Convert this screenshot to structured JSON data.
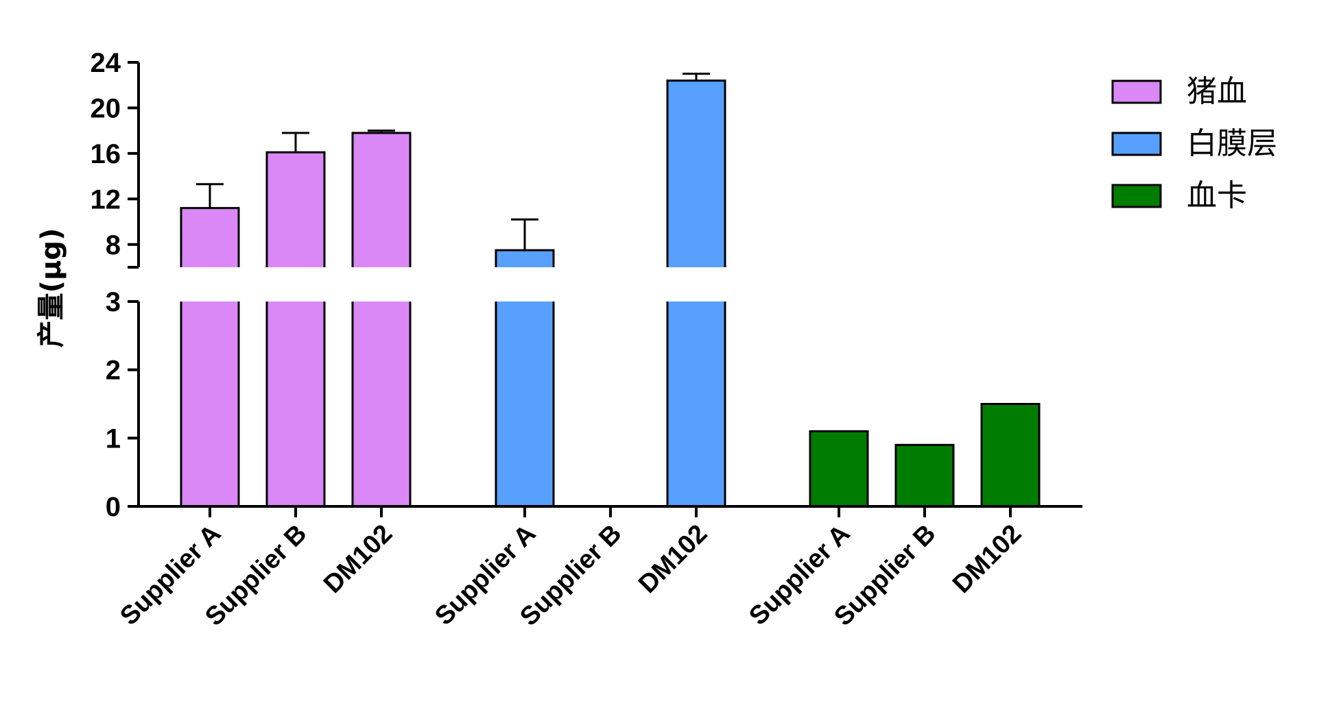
{
  "chart_data": {
    "type": "bar",
    "ylabel": "产量(μg)",
    "y_axis_break": {
      "lower_range": [
        0,
        3
      ],
      "upper_range": [
        6,
        24
      ]
    },
    "y_ticks_lower": [
      0,
      1,
      2,
      3
    ],
    "y_ticks_upper": [
      8,
      12,
      16,
      20,
      24
    ],
    "legend_position": "top-right",
    "groups": [
      {
        "name": "猪血",
        "color": "#DA88F5",
        "categories": [
          "Supplier A",
          "Supplier B",
          "DM102"
        ],
        "values": [
          11.2,
          16.1,
          17.8
        ],
        "error_plus": [
          2.1,
          1.7,
          0.2
        ]
      },
      {
        "name": "白膜层",
        "color": "#57A0FD",
        "categories": [
          "Supplier A",
          "Supplier B",
          "DM102"
        ],
        "values": [
          7.5,
          0,
          22.4
        ],
        "error_plus": [
          2.7,
          0,
          0.6
        ]
      },
      {
        "name": "血卡",
        "color": "#007D00",
        "categories": [
          "Supplier A",
          "Supplier B",
          "DM102"
        ],
        "values": [
          1.1,
          0.9,
          1.5
        ],
        "error_plus": [
          0,
          0,
          0
        ]
      }
    ]
  }
}
